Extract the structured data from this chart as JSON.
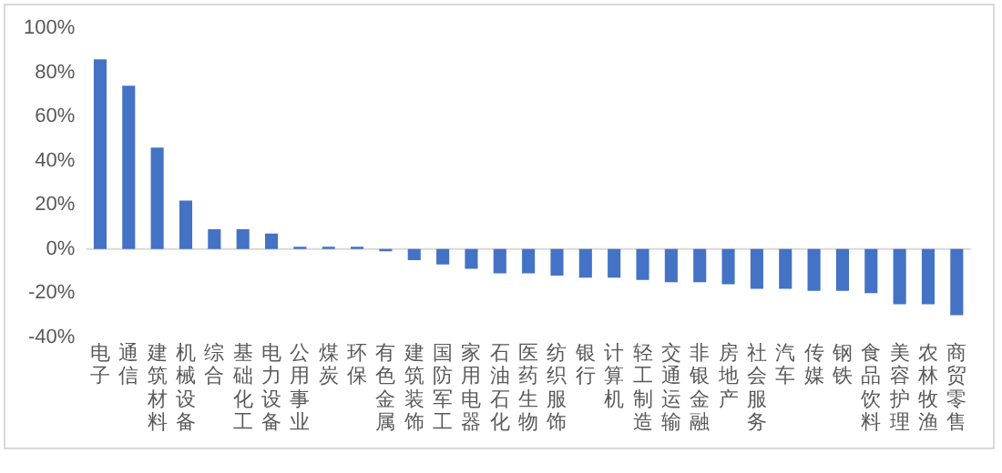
{
  "chart_data": {
    "type": "bar",
    "color": "#4472c4",
    "grid": false,
    "legend": false,
    "categories": [
      "电子",
      "通信",
      "建筑材料",
      "机械设备",
      "综合",
      "基础化工",
      "电力设备",
      "公用事业",
      "煤炭",
      "环保",
      "有色金属",
      "建筑装饰",
      "国防军工",
      "家用电器",
      "石油石化",
      "医药生物",
      "纺织服饰",
      "银行",
      "计算机",
      "轻工制造",
      "交通运输",
      "非银金融",
      "房地产",
      "社会服务",
      "汽车",
      "传媒",
      "钢铁",
      "食品饮料",
      "美容护理",
      "农林牧渔",
      "商贸零售"
    ],
    "values": [
      86,
      74,
      46,
      22,
      9,
      9,
      7,
      1,
      1,
      1,
      -1,
      -5,
      -7,
      -9,
      -11,
      -11,
      -12,
      -13,
      -13,
      -14,
      -15,
      -15,
      -16,
      -18,
      -18,
      -19,
      -19,
      -20,
      -25,
      -25,
      -30
    ],
    "ref_lines": [
      {
        "axis": "y",
        "value": 0,
        "color": "#d9d9d9"
      }
    ],
    "ylim": [
      -40,
      100
    ],
    "yticks": [
      {
        "value": -40,
        "label": "-40%"
      },
      {
        "value": -20,
        "label": "-20%"
      },
      {
        "value": 0,
        "label": "0%"
      },
      {
        "value": 20,
        "label": "20%"
      },
      {
        "value": 40,
        "label": "40%"
      },
      {
        "value": 60,
        "label": "60%"
      },
      {
        "value": 80,
        "label": "80%"
      },
      {
        "value": 100,
        "label": "100%"
      }
    ]
  }
}
